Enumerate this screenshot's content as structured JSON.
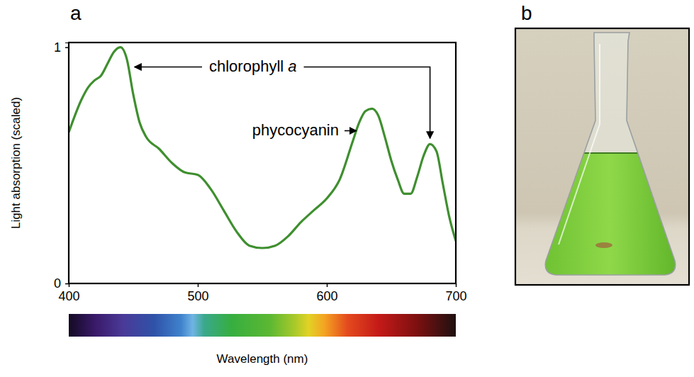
{
  "chart_data": {
    "type": "line",
    "panel": "a",
    "x_label": "Wavelength (nm)",
    "y_label": "Light absorption (scaled)",
    "x": [
      400,
      410,
      415,
      420,
      425,
      430,
      435,
      440,
      445,
      450,
      455,
      460,
      470,
      480,
      490,
      500,
      510,
      520,
      530,
      540,
      550,
      560,
      570,
      580,
      590,
      600,
      610,
      620,
      625,
      630,
      635,
      640,
      645,
      650,
      655,
      660,
      665,
      670,
      675,
      680,
      685,
      690,
      695,
      700
    ],
    "series": [
      {
        "color": "#3f8f2f",
        "values": [
          0.64,
          0.78,
          0.83,
          0.86,
          0.88,
          0.93,
          0.98,
          1.0,
          0.95,
          0.8,
          0.68,
          0.62,
          0.57,
          0.51,
          0.47,
          0.46,
          0.4,
          0.31,
          0.22,
          0.16,
          0.15,
          0.16,
          0.2,
          0.26,
          0.31,
          0.36,
          0.44,
          0.6,
          0.68,
          0.73,
          0.74,
          0.71,
          0.62,
          0.52,
          0.44,
          0.38,
          0.38,
          0.45,
          0.54,
          0.59,
          0.56,
          0.42,
          0.28,
          0.18
        ]
      }
    ],
    "xlim": [
      400,
      700
    ],
    "ylim": [
      0,
      1.02
    ],
    "xticks": [
      400,
      500,
      600,
      700
    ],
    "yticks": [
      0,
      1
    ],
    "grid": false,
    "annotations": [
      {
        "text": "chlorophyll a",
        "x": [
          440,
          680
        ]
      },
      {
        "text": "phycocyanin",
        "x": [
          635
        ]
      }
    ]
  },
  "photo_panel": {
    "panel": "b"
  }
}
